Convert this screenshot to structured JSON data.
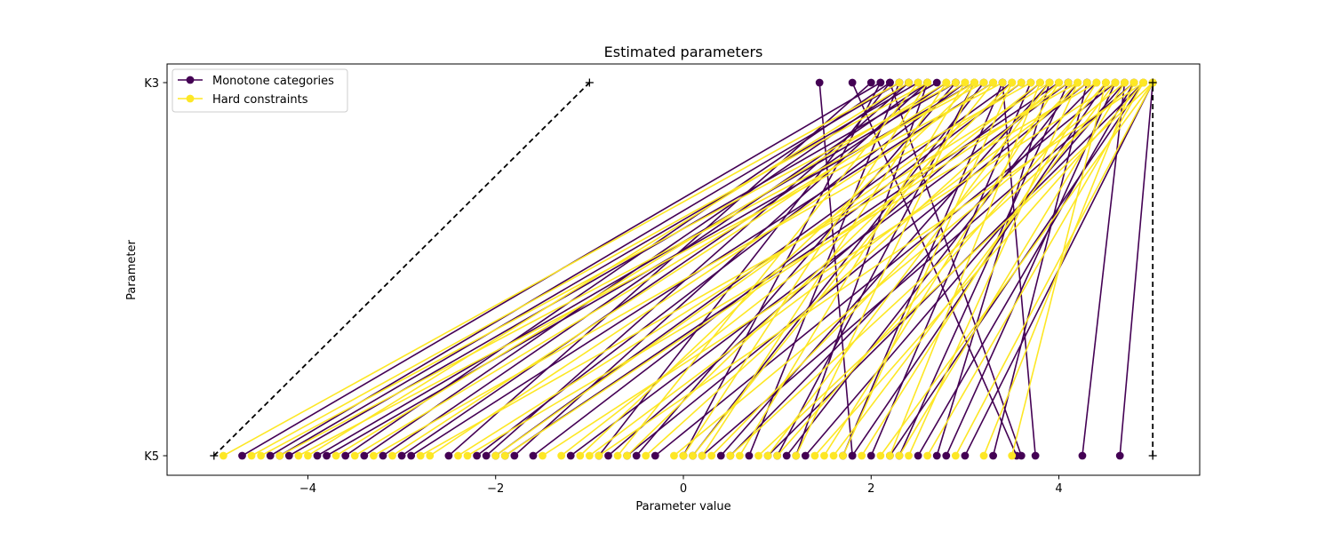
{
  "chart_data": {
    "type": "line",
    "title": "Estimated parameters",
    "xlabel": "Parameter value",
    "ylabel": "Parameter",
    "xlim": [
      -5.5,
      5.5
    ],
    "xticks": [
      -4,
      -2,
      0,
      2,
      4
    ],
    "xtick_labels": [
      "−4",
      "−2",
      "0",
      "2",
      "4"
    ],
    "y_categories": [
      "K5",
      "K3"
    ],
    "grid": false,
    "legend_position": "top-left",
    "series": [
      {
        "name": "Monotone categories",
        "color": "#440154",
        "pairs": [
          [
            -4.7,
            2.1
          ],
          [
            -4.4,
            2.3
          ],
          [
            -4.3,
            2.5
          ],
          [
            -4.2,
            2.7
          ],
          [
            -3.9,
            2.9
          ],
          [
            -3.8,
            3.1
          ],
          [
            -3.6,
            2.2
          ],
          [
            -3.4,
            2.4
          ],
          [
            -3.2,
            2.6
          ],
          [
            -3.0,
            2.8
          ],
          [
            -2.9,
            3.3
          ],
          [
            -2.5,
            2.0
          ],
          [
            -2.2,
            3.0
          ],
          [
            -2.1,
            2.4
          ],
          [
            -2.0,
            3.5
          ],
          [
            -1.9,
            4.0
          ],
          [
            -1.8,
            2.6
          ],
          [
            -1.6,
            3.6
          ],
          [
            -1.2,
            4.1
          ],
          [
            -0.9,
            2.2
          ],
          [
            -0.8,
            3.8
          ],
          [
            -0.6,
            4.3
          ],
          [
            -0.5,
            2.9
          ],
          [
            -0.3,
            4.6
          ],
          [
            0.0,
            2.1
          ],
          [
            0.1,
            3.2
          ],
          [
            0.2,
            4.8
          ],
          [
            0.4,
            3.9
          ],
          [
            0.5,
            4.4
          ],
          [
            0.7,
            2.3
          ],
          [
            0.9,
            4.9
          ],
          [
            1.0,
            3.1
          ],
          [
            1.1,
            4.2
          ],
          [
            1.2,
            2.6
          ],
          [
            1.3,
            4.7
          ],
          [
            1.7,
            3.4
          ],
          [
            1.8,
            4.5
          ],
          [
            2.0,
            3.7
          ],
          [
            2.3,
            4.1
          ],
          [
            2.5,
            4.8
          ],
          [
            2.7,
            3.9
          ],
          [
            2.8,
            4.6
          ],
          [
            3.0,
            5.0
          ],
          [
            3.3,
            4.3
          ],
          [
            3.55,
            1.8
          ],
          [
            3.6,
            2.2
          ],
          [
            3.75,
            3.4
          ],
          [
            4.25,
            4.7
          ],
          [
            4.65,
            5.0
          ],
          [
            1.8,
            1.45
          ],
          [
            2.2,
            4.9
          ]
        ]
      },
      {
        "name": "Hard constraints",
        "color": "#fde725",
        "pairs": [
          [
            -4.9,
            2.3
          ],
          [
            -4.6,
            2.6
          ],
          [
            -4.5,
            2.9
          ],
          [
            -4.3,
            3.2
          ],
          [
            -4.1,
            3.4
          ],
          [
            -4.0,
            2.4
          ],
          [
            -3.7,
            2.8
          ],
          [
            -3.5,
            3.1
          ],
          [
            -3.3,
            3.7
          ],
          [
            -3.1,
            3.0
          ],
          [
            -2.8,
            4.2
          ],
          [
            -2.7,
            3.3
          ],
          [
            -2.4,
            3.9
          ],
          [
            -2.3,
            4.4
          ],
          [
            -2.0,
            3.6
          ],
          [
            -1.9,
            4.1
          ],
          [
            -1.5,
            4.6
          ],
          [
            -1.3,
            3.8
          ],
          [
            -1.0,
            4.3
          ],
          [
            -0.9,
            4.9
          ],
          [
            -0.7,
            2.5
          ],
          [
            -0.6,
            3.5
          ],
          [
            -0.4,
            4.0
          ],
          [
            -0.1,
            4.7
          ],
          [
            0.0,
            2.6
          ],
          [
            0.1,
            3.3
          ],
          [
            0.3,
            4.2
          ],
          [
            0.5,
            4.8
          ],
          [
            0.6,
            3.0
          ],
          [
            0.8,
            5.0
          ],
          [
            0.9,
            3.9
          ],
          [
            1.0,
            4.5
          ],
          [
            1.2,
            3.1
          ],
          [
            1.4,
            4.9
          ],
          [
            1.5,
            4.0
          ],
          [
            1.6,
            4.6
          ],
          [
            1.7,
            3.5
          ],
          [
            1.9,
            4.4
          ],
          [
            2.1,
            5.0
          ],
          [
            2.2,
            3.8
          ],
          [
            2.3,
            4.7
          ],
          [
            2.4,
            4.2
          ],
          [
            2.6,
            4.9
          ],
          [
            2.9,
            5.0
          ],
          [
            3.2,
            4.8
          ],
          [
            3.5,
            4.5
          ],
          [
            -1.1,
            3.1
          ],
          [
            0.2,
            2.8
          ]
        ]
      },
      {
        "name": "",
        "color": "#000000",
        "style": "dashed",
        "marker": "+",
        "pairs": [
          [
            -5.0,
            -1.0
          ],
          [
            5.0,
            5.0
          ]
        ]
      }
    ]
  }
}
